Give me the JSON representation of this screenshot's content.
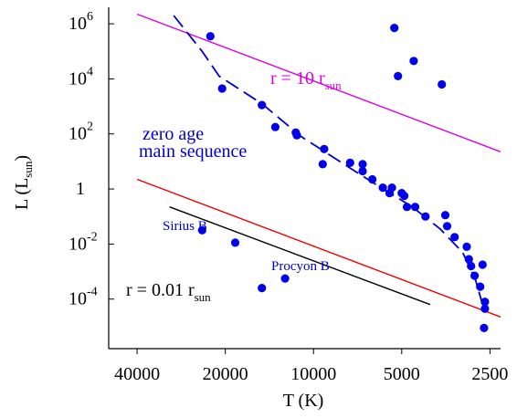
{
  "chart_data": {
    "type": "scatter",
    "title": "",
    "xlabel": "T (K)",
    "ylabel_main": "L (L",
    "ylabel_sub": "sun",
    "ylabel_close": ")",
    "x_scale": "log, reversed (hot on left)",
    "y_scale": "log",
    "xlim": [
      50000,
      2300
    ],
    "ylim_log10": [
      -5.8,
      6.6
    ],
    "grid": false,
    "x_ticks": [
      {
        "value": 40000,
        "label": "40000"
      },
      {
        "value": 20000,
        "label": "20000"
      },
      {
        "value": 10000,
        "label": "10000"
      },
      {
        "value": 5000,
        "label": "5000"
      },
      {
        "value": 2500,
        "label": "2500"
      }
    ],
    "y_ticks": [
      {
        "log": 6,
        "base": "10",
        "exp": "6"
      },
      {
        "log": 4,
        "base": "10",
        "exp": "4"
      },
      {
        "log": 2,
        "base": "10",
        "exp": "2"
      },
      {
        "log": 0,
        "base": "1",
        "exp": ""
      },
      {
        "log": -2,
        "base": "10",
        "exp": "-2"
      },
      {
        "log": -4,
        "base": "10",
        "exp": "-4"
      }
    ],
    "stars": [
      {
        "T": 22500,
        "logL": 5.55
      },
      {
        "T": 20500,
        "logL": 3.65
      },
      {
        "T": 15000,
        "logL": 3.05
      },
      {
        "T": 13500,
        "logL": 2.25
      },
      {
        "T": 11500,
        "logL": 2.05
      },
      {
        "T": 11400,
        "logL": 1.95
      },
      {
        "T": 9200,
        "logL": 1.45
      },
      {
        "T": 9300,
        "logL": 0.9
      },
      {
        "T": 7500,
        "logL": 0.95
      },
      {
        "T": 6800,
        "logL": 0.9
      },
      {
        "T": 6800,
        "logL": 0.65
      },
      {
        "T": 6300,
        "logL": 0.35
      },
      {
        "T": 5800,
        "logL": 0.05
      },
      {
        "T": 5500,
        "logL": -0.15
      },
      {
        "T": 5400,
        "logL": 0.05
      },
      {
        "T": 5000,
        "logL": -0.15
      },
      {
        "T": 4900,
        "logL": -0.25
      },
      {
        "T": 4800,
        "logL": -0.65
      },
      {
        "T": 4500,
        "logL": -0.65
      },
      {
        "T": 4150,
        "logL": -1.0
      },
      {
        "T": 3550,
        "logL": -0.95
      },
      {
        "T": 3500,
        "logL": -1.35
      },
      {
        "T": 3300,
        "logL": -1.75
      },
      {
        "T": 3000,
        "logL": -2.1
      },
      {
        "T": 2950,
        "logL": -2.55
      },
      {
        "T": 2900,
        "logL": -2.8
      },
      {
        "T": 2820,
        "logL": -3.15
      },
      {
        "T": 2650,
        "logL": -2.75
      },
      {
        "T": 2700,
        "logL": -3.55
      },
      {
        "T": 2600,
        "logL": -4.1
      },
      {
        "T": 2600,
        "logL": -4.35
      },
      {
        "T": 2620,
        "logL": -5.05
      },
      {
        "T": 5300,
        "logL": 5.85
      },
      {
        "T": 5150,
        "logL": 4.1
      },
      {
        "T": 4550,
        "logL": 4.65
      },
      {
        "T": 3650,
        "logL": 3.8
      },
      {
        "T": 24000,
        "logL": -1.5
      },
      {
        "T": 18500,
        "logL": -1.95
      },
      {
        "T": 15000,
        "logL": -3.6
      },
      {
        "T": 12500,
        "logL": -3.25
      }
    ],
    "series": [
      {
        "name": "r = 10 r",
        "sub": "sun",
        "color": "#dd00dd",
        "points": [
          {
            "T": 40000,
            "logL": 6.35
          },
          {
            "T": 2300,
            "logL": 1.35
          }
        ]
      },
      {
        "name": "",
        "color": "#ee0000",
        "points": [
          {
            "T": 40000,
            "logL": 0.35
          },
          {
            "T": 2300,
            "logL": -4.65
          }
        ]
      },
      {
        "name": "r = 0.01 r",
        "sub": "sun",
        "color": "#000000",
        "points": [
          {
            "T": 31000,
            "logL": -0.65
          },
          {
            "T": 4000,
            "logL": -4.2
          }
        ]
      },
      {
        "name": "zero age main sequence",
        "color": "#0000cc",
        "dashed": true,
        "points": [
          {
            "T": 30000,
            "logL": 6.3
          },
          {
            "T": 24000,
            "logL": 5.0
          },
          {
            "T": 21000,
            "logL": 4.1
          },
          {
            "T": 15000,
            "logL": 3.1
          },
          {
            "T": 11000,
            "logL": 1.9
          },
          {
            "T": 8000,
            "logL": 0.95
          },
          {
            "T": 6000,
            "logL": 0.1
          },
          {
            "T": 4600,
            "logL": -0.65
          },
          {
            "T": 3700,
            "logL": -1.45
          },
          {
            "T": 3100,
            "logL": -2.3
          },
          {
            "T": 2800,
            "logL": -3.3
          },
          {
            "T": 2650,
            "logL": -4.2
          }
        ]
      }
    ],
    "annotations": {
      "r10": {
        "text": "r = 10 r",
        "sub": "sun"
      },
      "zams_line1": "zero age",
      "zams_line2": "main sequence",
      "sirius": "Sirius B",
      "procyon": "Procyon B",
      "r001": {
        "text": "r = 0.01 r",
        "sub": "sun"
      }
    },
    "colors": {
      "stars": "#0000ee",
      "annotation_blue": "#0000cc",
      "r10_line": "#dd00dd",
      "middle_line": "#ee0000",
      "r001_line": "#000000"
    }
  }
}
